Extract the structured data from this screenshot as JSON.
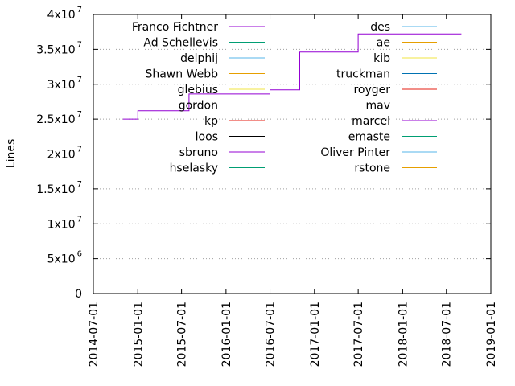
{
  "chart_data": {
    "type": "line",
    "title": "",
    "xlabel": "",
    "ylabel": "Lines",
    "xlim": [
      "2014-07-01",
      "2019-01-01"
    ],
    "ylim": [
      0,
      40000000
    ],
    "x_ticks": [
      "2014-07-01",
      "2015-01-01",
      "2015-07-01",
      "2016-01-01",
      "2016-07-01",
      "2017-01-01",
      "2017-07-01",
      "2018-01-01",
      "2018-07-01",
      "2019-01-01"
    ],
    "y_ticks": [
      {
        "value": 0,
        "mantissa": "0",
        "exponent": ""
      },
      {
        "value": 5000000,
        "mantissa": "5x10",
        "exponent": "6"
      },
      {
        "value": 10000000,
        "mantissa": "1x10",
        "exponent": "7"
      },
      {
        "value": 15000000,
        "mantissa": "1.5x10",
        "exponent": "7"
      },
      {
        "value": 20000000,
        "mantissa": "2x10",
        "exponent": "7"
      },
      {
        "value": 25000000,
        "mantissa": "2.5x10",
        "exponent": "7"
      },
      {
        "value": 30000000,
        "mantissa": "3x10",
        "exponent": "7"
      },
      {
        "value": 35000000,
        "mantissa": "3.5x10",
        "exponent": "7"
      },
      {
        "value": 40000000,
        "mantissa": "4x10",
        "exponent": "7"
      }
    ],
    "grid": "y-dotted",
    "legend_position": "top",
    "series": [
      {
        "name": "Franco Fichtner",
        "color": "#9400d3",
        "points": [
          [
            "2014-11-01",
            25000000
          ],
          [
            "2015-01-01",
            25000000
          ],
          [
            "2015-01-01",
            26200000
          ],
          [
            "2015-08-01",
            26200000
          ],
          [
            "2015-08-01",
            28600000
          ],
          [
            "2016-07-01",
            28600000
          ],
          [
            "2016-07-01",
            29200000
          ],
          [
            "2016-11-01",
            29200000
          ],
          [
            "2016-11-01",
            34600000
          ],
          [
            "2017-07-01",
            34600000
          ],
          [
            "2017-07-01",
            37200000
          ],
          [
            "2018-09-01",
            37200000
          ]
        ]
      },
      {
        "name": "Ad Schellevis",
        "color": "#009e73",
        "points": [
          [
            "2017-07-01",
            0
          ],
          [
            "2018-09-01",
            0
          ]
        ]
      },
      {
        "name": "delphij",
        "color": "#56b4e9",
        "points": [
          [
            "2017-07-01",
            0
          ],
          [
            "2018-09-01",
            0
          ]
        ]
      },
      {
        "name": "Shawn Webb",
        "color": "#e69f00",
        "points": []
      },
      {
        "name": "glebius",
        "color": "#f0e442",
        "points": []
      },
      {
        "name": "gordon",
        "color": "#0072b2",
        "points": []
      },
      {
        "name": "kp",
        "color": "#e51e10",
        "points": []
      },
      {
        "name": "loos",
        "color": "#000000",
        "points": []
      },
      {
        "name": "sbruno",
        "color": "#9400d3",
        "points": []
      },
      {
        "name": "hselasky",
        "color": "#009e73",
        "points": []
      },
      {
        "name": "des",
        "color": "#56b4e9",
        "points": []
      },
      {
        "name": "ae",
        "color": "#e69f00",
        "points": []
      },
      {
        "name": "kib",
        "color": "#f0e442",
        "points": []
      },
      {
        "name": "truckman",
        "color": "#0072b2",
        "points": []
      },
      {
        "name": "royger",
        "color": "#e51e10",
        "points": []
      },
      {
        "name": "mav",
        "color": "#000000",
        "points": []
      },
      {
        "name": "marcel",
        "color": "#9400d3",
        "points": []
      },
      {
        "name": "emaste",
        "color": "#009e73",
        "points": []
      },
      {
        "name": "Oliver Pinter",
        "color": "#56b4e9",
        "points": []
      },
      {
        "name": "rstone",
        "color": "#e69f00",
        "points": []
      }
    ]
  }
}
